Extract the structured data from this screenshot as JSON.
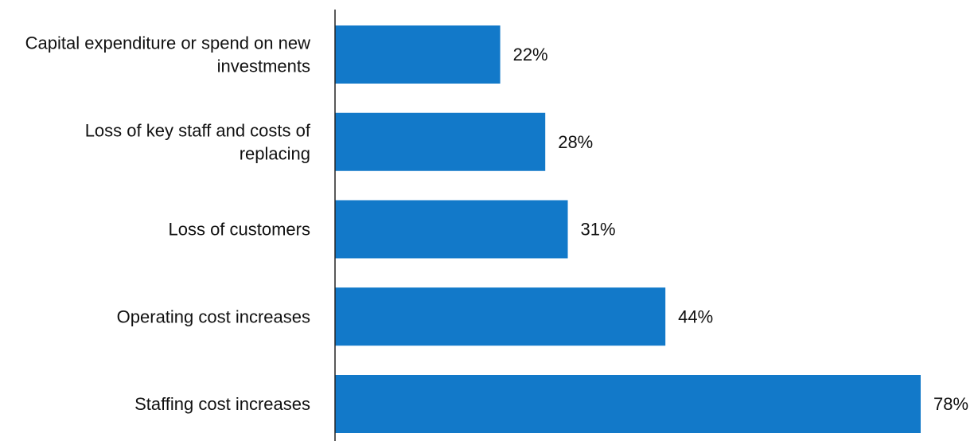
{
  "chart_data": {
    "type": "bar",
    "orientation": "horizontal",
    "categories": [
      "Capital expenditure or spend on new investments",
      "Loss of key staff and costs of replacing",
      "Loss of customers",
      "Operating cost increases",
      "Staffing cost increases"
    ],
    "category_lines": [
      [
        "Capital expenditure or spend on new",
        "investments"
      ],
      [
        "Loss of key staff and costs of",
        "replacing"
      ],
      [
        "Loss of customers"
      ],
      [
        "Operating cost increases"
      ],
      [
        "Staffing cost increases"
      ]
    ],
    "values": [
      22,
      28,
      31,
      44,
      78
    ],
    "value_labels": [
      "22%",
      "28%",
      "31%",
      "44%",
      "78%"
    ],
    "unit": "%",
    "xlim": [
      0,
      78
    ],
    "bar_color": "#1279C9",
    "axis_color": "#222222",
    "title": "",
    "xlabel": "",
    "ylabel": "",
    "grid": false,
    "legend": "none"
  }
}
